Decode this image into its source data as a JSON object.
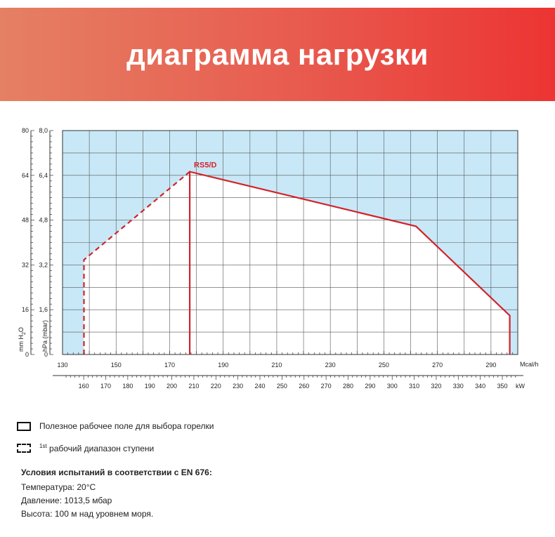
{
  "header": {
    "title": "диаграмма нагрузки"
  },
  "chart_data": {
    "type": "area",
    "series_label": "RS5/D",
    "x_unit_primary": "Mcal/h",
    "x_unit_secondary": "kW",
    "y_label_left": "mm H2O",
    "y_label_right": "hPa (mbar)",
    "xlim_mcal": [
      130,
      300
    ],
    "x_ticks_mcal": [
      130,
      150,
      170,
      190,
      210,
      230,
      250,
      270,
      290
    ],
    "x_ticks_kw": [
      160,
      170,
      180,
      190,
      200,
      210,
      220,
      230,
      240,
      250,
      260,
      270,
      280,
      290,
      300,
      310,
      320,
      330,
      340,
      350
    ],
    "kw_range": [
      150.4,
      357
    ],
    "ylim_mmH2O": [
      0,
      80
    ],
    "y_ticks_mmH2O": [
      0,
      16,
      32,
      48,
      64,
      80
    ],
    "y_ticks_hPa": [
      "0",
      "1,6",
      "3,2",
      "4,8",
      "6,4",
      "8,0"
    ],
    "working_field": {
      "line_style": "solid",
      "points_mcal_mmH2O": [
        [
          177.5,
          0
        ],
        [
          177.5,
          65.3
        ],
        [
          262,
          45.8
        ],
        [
          297,
          13.9
        ],
        [
          297,
          0
        ]
      ]
    },
    "first_stage_range": {
      "line_style": "dashed",
      "points_mcal_mmH2O": [
        [
          138,
          0
        ],
        [
          138,
          33.8
        ],
        [
          177.5,
          65.3
        ]
      ]
    },
    "grid": true
  },
  "legend": {
    "working_field": "Полезное рабочее поле для выбора горелки",
    "stage_sup": "1st",
    "stage_text": "рабочий диапазон ступени"
  },
  "conditions": {
    "title": "Условия испытаний в соответствии с EN 676:",
    "temperature": "Температура: 20°C",
    "pressure": "Давление: 1013,5 мбар",
    "altitude": "Высота: 100 м над уровнем моря."
  },
  "colors": {
    "accent": "#d3232a",
    "background_fill": "#c8e8f7",
    "grid": "#555555"
  }
}
